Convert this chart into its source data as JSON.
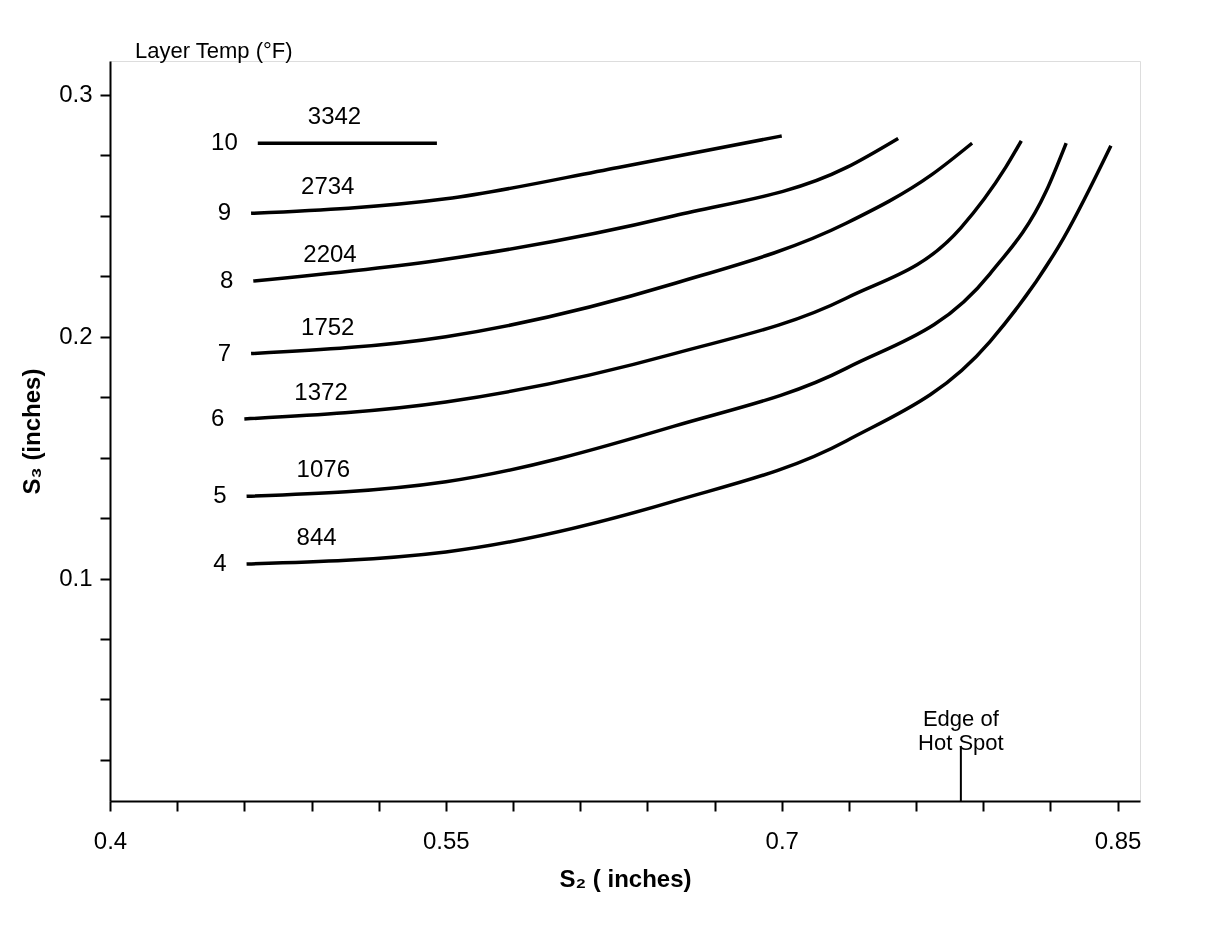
{
  "chart_data": {
    "type": "line",
    "xlabel": "S₂ ( inches)",
    "ylabel": "S₃ (inches)",
    "legend_title": "Layer Temp (°F)",
    "xlim": [
      0.4,
      0.86
    ],
    "ylim": [
      0.008,
      0.314
    ],
    "xticks": [
      0.4,
      {
        "value": 0.43,
        "label": null
      },
      {
        "value": 0.46,
        "label": null
      },
      {
        "value": 0.49,
        "label": null
      },
      {
        "value": 0.52,
        "label": null
      },
      0.55,
      {
        "value": 0.58,
        "label": null
      },
      {
        "value": 0.61,
        "label": null
      },
      {
        "value": 0.64,
        "label": null
      },
      {
        "value": 0.67,
        "label": null
      },
      0.7,
      {
        "value": 0.73,
        "label": null
      },
      {
        "value": 0.76,
        "label": null
      },
      {
        "value": 0.79,
        "label": null
      },
      {
        "value": 0.82,
        "label": null
      },
      0.85
    ],
    "yticks": [
      {
        "value": 0.025,
        "label": null
      },
      {
        "value": 0.05,
        "label": null
      },
      {
        "value": 0.075,
        "label": null
      },
      0.1,
      {
        "value": 0.125,
        "label": null
      },
      {
        "value": 0.15,
        "label": null
      },
      {
        "value": 0.175,
        "label": null
      },
      0.2,
      {
        "value": 0.225,
        "label": null
      },
      {
        "value": 0.25,
        "label": null
      },
      {
        "value": 0.275,
        "label": null
      },
      0.3
    ],
    "grid": false,
    "marker": "none",
    "line_style": "solid",
    "series": [
      {
        "name": "10",
        "color": "#000000",
        "x": [
          0.466,
          0.546
        ],
        "values": [
          0.28,
          0.28
        ]
      },
      {
        "name": "9",
        "color": "#000000",
        "x": [
          0.463,
          0.55,
          0.627,
          0.7
        ],
        "values": [
          0.251,
          0.257,
          0.27,
          0.283
        ]
      },
      {
        "name": "8",
        "color": "#000000",
        "x": [
          0.464,
          0.55,
          0.652,
          0.729,
          0.752
        ],
        "values": [
          0.223,
          0.232,
          0.25,
          0.27,
          0.282
        ]
      },
      {
        "name": "7",
        "color": "#000000",
        "x": [
          0.463,
          0.55,
          0.652,
          0.729,
          0.767,
          0.785
        ],
        "values": [
          0.193,
          0.2,
          0.222,
          0.247,
          0.267,
          0.28
        ]
      },
      {
        "name": "6",
        "color": "#000000",
        "x": [
          0.46,
          0.55,
          0.652,
          0.729,
          0.78,
          0.8,
          0.807
        ],
        "values": [
          0.166,
          0.173,
          0.193,
          0.216,
          0.245,
          0.27,
          0.281
        ]
      },
      {
        "name": "5",
        "color": "#000000",
        "x": [
          0.461,
          0.55,
          0.652,
          0.729,
          0.793,
          0.818,
          0.827
        ],
        "values": [
          0.134,
          0.14,
          0.163,
          0.187,
          0.226,
          0.26,
          0.28
        ]
      },
      {
        "name": "4",
        "color": "#000000",
        "x": [
          0.461,
          0.55,
          0.652,
          0.729,
          0.793,
          0.826,
          0.847
        ],
        "values": [
          0.106,
          0.111,
          0.132,
          0.157,
          0.198,
          0.241,
          0.279
        ]
      }
    ],
    "annotations": [
      "3342",
      "2734",
      "2204",
      "1752",
      "1372",
      "1076",
      "844",
      {
        "text": "Edge of\nHot Spot",
        "x": 0.78
      }
    ]
  }
}
